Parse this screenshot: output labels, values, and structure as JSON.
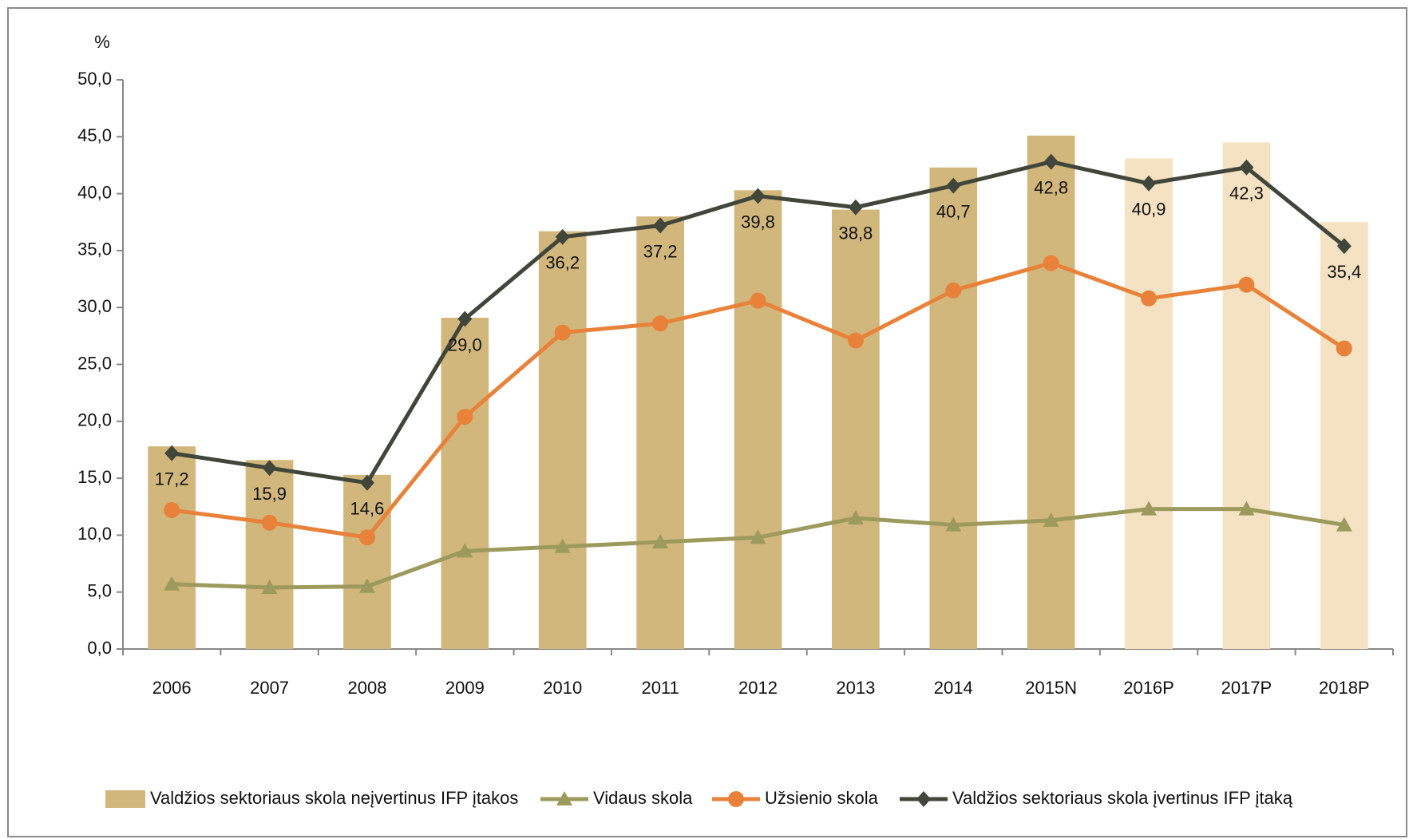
{
  "chart_data": {
    "type": "bar-line",
    "y_label": "%",
    "categories": [
      "2006",
      "2007",
      "2008",
      "2009",
      "2010",
      "2011",
      "2012",
      "2013",
      "2014",
      "2015N",
      "2016P",
      "2017P",
      "2018P"
    ],
    "ylim": [
      0,
      50
    ],
    "yticks": [
      {
        "value": 0,
        "label": "0,0"
      },
      {
        "value": 5,
        "label": "5,0"
      },
      {
        "value": 10,
        "label": "10,0"
      },
      {
        "value": 15,
        "label": "15,0"
      },
      {
        "value": 20,
        "label": "20,0"
      },
      {
        "value": 25,
        "label": "25,0"
      },
      {
        "value": 30,
        "label": "30,0"
      },
      {
        "value": 35,
        "label": "35,0"
      },
      {
        "value": 40,
        "label": "40,0"
      },
      {
        "value": 45,
        "label": "45,0"
      },
      {
        "value": 50,
        "label": "50,0"
      }
    ],
    "series": [
      {
        "name": "Valdžios sektoriaus skola neįvertinus IFP įtakos",
        "kind": "bar",
        "color": "#d2b77c",
        "colors": [
          "#d2b77c",
          "#d2b77c",
          "#d2b77c",
          "#d2b77c",
          "#d2b77c",
          "#d2b77c",
          "#d2b77c",
          "#d2b77c",
          "#d2b77c",
          "#d2b77c",
          "#f4e2c2",
          "#f4e2c2",
          "#f4e2c2"
        ],
        "values": [
          17.8,
          16.6,
          15.3,
          29.1,
          36.7,
          38.0,
          40.3,
          38.6,
          42.3,
          45.1,
          43.1,
          44.5,
          37.5
        ]
      },
      {
        "name": "Vidaus skola",
        "kind": "line",
        "marker": "triangle",
        "color": "#9c9a5c",
        "values": [
          5.7,
          5.4,
          5.5,
          8.6,
          9.0,
          9.4,
          9.8,
          11.5,
          10.9,
          11.3,
          12.3,
          12.3,
          10.9
        ]
      },
      {
        "name": "Užsienio skola",
        "kind": "line",
        "marker": "circle",
        "color": "#e8823a",
        "values": [
          12.2,
          11.1,
          9.8,
          20.4,
          27.8,
          28.6,
          30.6,
          27.1,
          31.5,
          33.9,
          30.8,
          32.0,
          26.4
        ]
      },
      {
        "name": "Valdžios sektoriaus skola įvertinus IFP įtaką",
        "kind": "line",
        "marker": "diamond",
        "color": "#41463a",
        "values": [
          17.2,
          15.9,
          14.6,
          29.0,
          36.2,
          37.2,
          39.8,
          38.8,
          40.7,
          42.8,
          40.9,
          42.3,
          35.4
        ],
        "value_labels": [
          "17,2",
          "15,9",
          "14,6",
          "29,0",
          "36,2",
          "37,2",
          "39,8",
          "38,8",
          "40,7",
          "42,8",
          "40,9",
          "42,3",
          "35,4"
        ]
      }
    ]
  }
}
